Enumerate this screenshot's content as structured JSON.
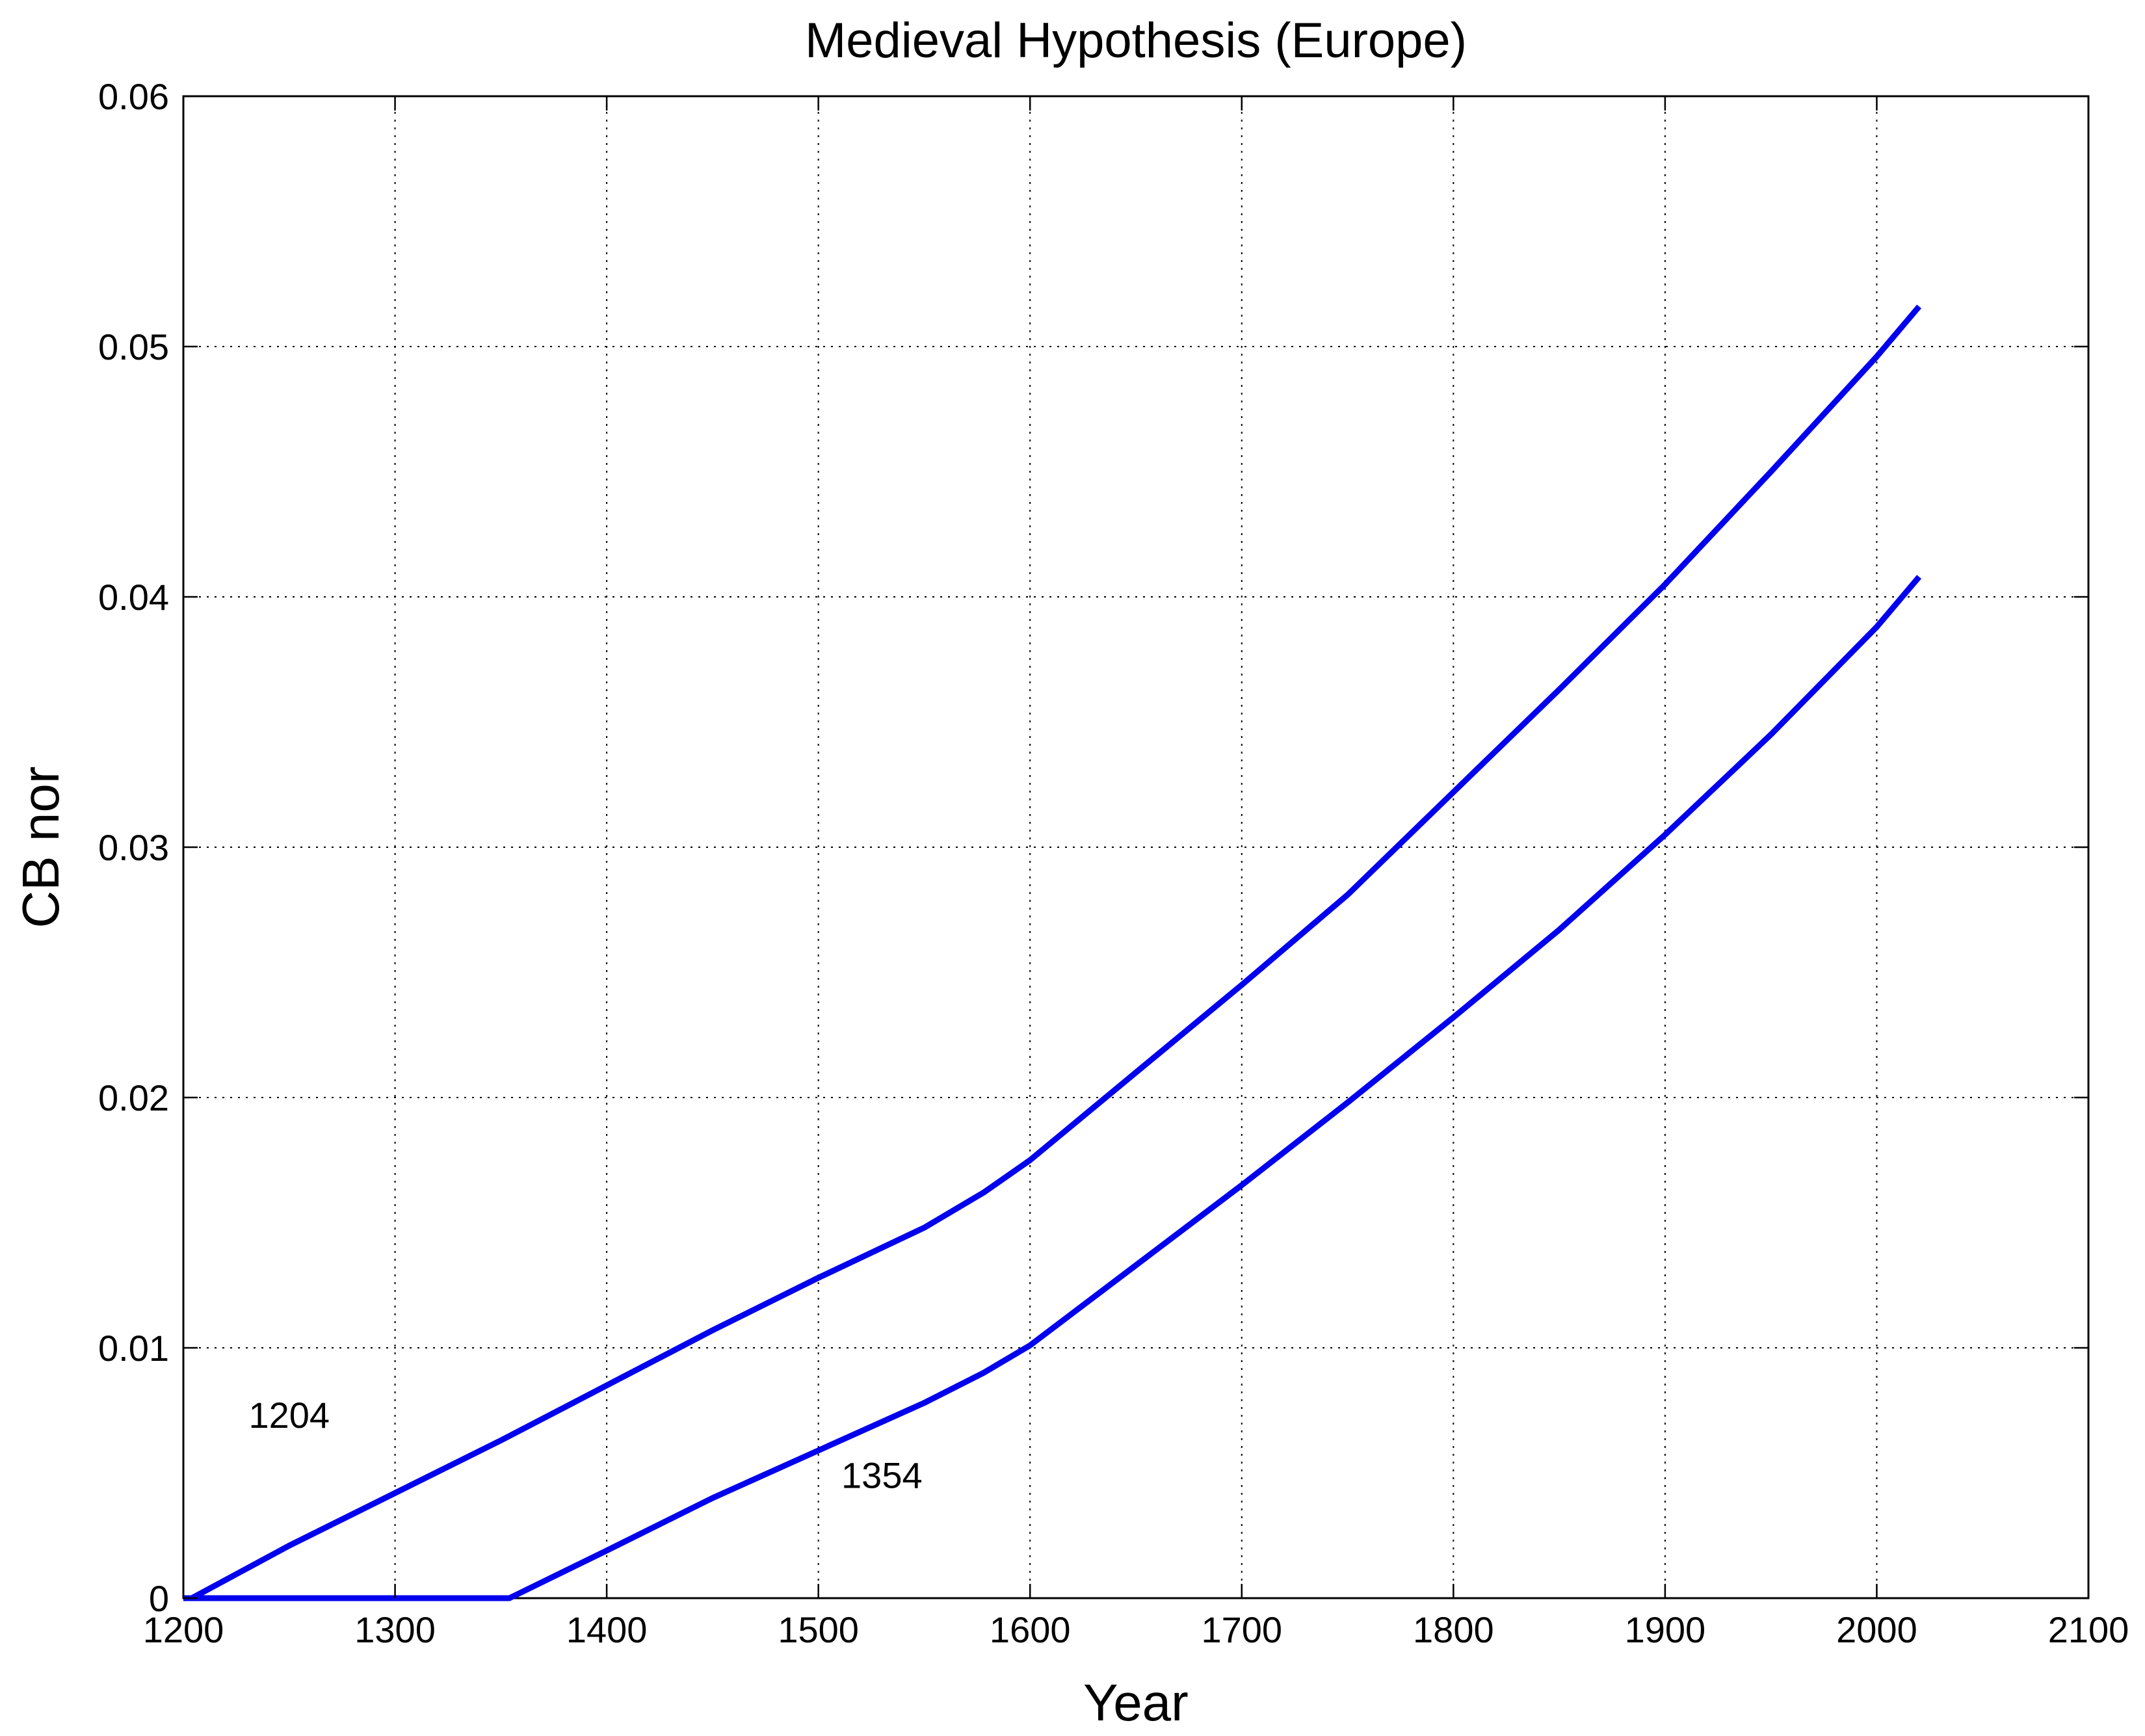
{
  "chart_data": {
    "type": "line",
    "title": "Medieval Hypothesis (Europe)",
    "xlabel": "Year",
    "ylabel": "CB nor",
    "xlim": [
      1200,
      2100
    ],
    "ylim": [
      0,
      0.06
    ],
    "xticks": [
      1200,
      1300,
      1400,
      1500,
      1600,
      1700,
      1800,
      1900,
      2000,
      2100
    ],
    "xtick_labels": [
      "1200",
      "1300",
      "1400",
      "1500",
      "1600",
      "1700",
      "1800",
      "1900",
      "2000",
      "2100"
    ],
    "yticks": [
      0,
      0.01,
      0.02,
      0.03,
      0.04,
      0.05,
      0.06
    ],
    "ytick_labels": [
      "0",
      "0.01",
      "0.02",
      "0.03",
      "0.04",
      "0.05",
      "0.06"
    ],
    "grid": true,
    "legend": false,
    "colors": {
      "series": "#0000ee",
      "text": "#000000",
      "background": "#ffffff"
    },
    "series": [
      {
        "x": [
          1204,
          1250,
          1300,
          1350,
          1400,
          1450,
          1500,
          1550,
          1578,
          1600,
          1650,
          1700,
          1750,
          1800,
          1850,
          1900,
          1950,
          2000,
          2020
        ],
        "y": [
          0,
          0.0021,
          0.0042,
          0.0063,
          0.0085,
          0.0107,
          0.0128,
          0.0148,
          0.0162,
          0.0175,
          0.021,
          0.0245,
          0.0281,
          0.0322,
          0.0363,
          0.0405,
          0.045,
          0.0496,
          0.0516
        ]
      },
      {
        "x": [
          1200,
          1354,
          1400,
          1450,
          1500,
          1550,
          1578,
          1600,
          1650,
          1700,
          1750,
          1800,
          1850,
          1900,
          1950,
          2000,
          2020
        ],
        "y": [
          0,
          0,
          0.0019,
          0.004,
          0.0059,
          0.0078,
          0.009,
          0.0101,
          0.0133,
          0.0165,
          0.0198,
          0.0232,
          0.0267,
          0.0305,
          0.0345,
          0.0388,
          0.0408
        ]
      }
    ],
    "annotations": [
      {
        "text": "1204",
        "x": 1250,
        "y": 0.0068
      },
      {
        "text": "1354",
        "x": 1530,
        "y": 0.0044
      }
    ]
  }
}
